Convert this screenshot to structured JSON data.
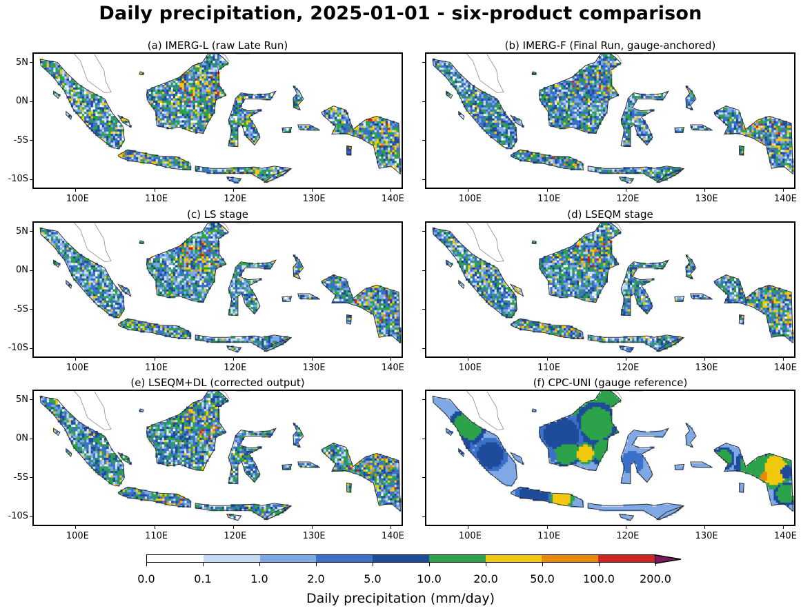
{
  "figure": {
    "title": "Daily precipitation, 2025-01-01 - six-product comparison"
  },
  "panels": [
    {
      "id": "a",
      "title": "(a) IMERG-L (raw Late Run)",
      "style": "satellite-raw"
    },
    {
      "id": "b",
      "title": "(b) IMERG-F (Final Run, gauge-anchored)",
      "style": "satellite-final"
    },
    {
      "id": "c",
      "title": "(c) LS stage",
      "style": "ls"
    },
    {
      "id": "d",
      "title": "(d) LSEQM stage",
      "style": "lseqm"
    },
    {
      "id": "e",
      "title": "(e) LSEQM+DL (corrected output)",
      "style": "dl"
    },
    {
      "id": "f",
      "title": "(f) CPC-UNI (gauge reference)",
      "style": "gauge"
    }
  ],
  "axes": {
    "lon_ticks": [
      "100E",
      "110E",
      "120E",
      "130E",
      "140E"
    ],
    "lat_ticks": [
      "5N",
      "0N",
      "-5S",
      "-10S"
    ],
    "lon_values": [
      100,
      110,
      120,
      130,
      140
    ],
    "lat_values": [
      5,
      0,
      -5,
      -10
    ],
    "lon_range": [
      94.5,
      141.5
    ],
    "lat_range": [
      -11.2,
      6.3
    ]
  },
  "colorbar": {
    "label": "Daily precipitation (mm/day)",
    "ticks": [
      "0.0",
      "0.1",
      "1.0",
      "2.0",
      "5.0",
      "10.0",
      "20.0",
      "50.0",
      "100.0",
      "200.0"
    ],
    "colors": [
      "#ffffff",
      "#c6dbf3",
      "#7fa9e6",
      "#3b70c9",
      "#1f4b9b",
      "#2ca24a",
      "#f2c80f",
      "#e8890a",
      "#cf2424"
    ],
    "extend_color": "#7a1a5a"
  }
}
